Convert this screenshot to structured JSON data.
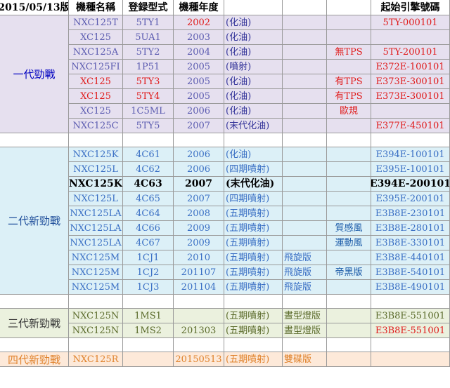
{
  "header": {
    "date": "2015/05/13版",
    "col_name": "機種名稱",
    "col_type": "登録型式",
    "col_year": "機種年度",
    "col_engine": "起始引擎號碼"
  },
  "colors": {
    "gen1_bg": "#e6e0ef",
    "gen2_bg": "#dcf0f7",
    "gen3_bg": "#ebf1de",
    "gen4_bg": "#fde9d9",
    "blue_text": "#3a6fc4",
    "red_text": "#e01a1a",
    "olive_text": "#5a6a2a",
    "orange_text": "#e0822c"
  },
  "groups": [
    {
      "label": "一代勁戰",
      "rows": [
        {
          "name": "NXC125T",
          "type": "5TY1",
          "year": "2002",
          "fuel": "(化油)",
          "ed1": "",
          "ed2": "",
          "engine": "5TY-000101"
        },
        {
          "name": "XC125",
          "type": "5UA1",
          "year": "2003",
          "fuel": "(化油)",
          "ed1": "",
          "ed2": "",
          "engine": ""
        },
        {
          "name": "NXC125A",
          "type": "5TY2",
          "year": "2004",
          "fuel": "(化油)",
          "ed1": "",
          "ed2": "無TPS",
          "engine": "5TY-200101"
        },
        {
          "name": "NXC125FI",
          "type": "1P51",
          "year": "2005",
          "fuel": "(噴射)",
          "ed1": "",
          "ed2": "",
          "engine": "E372E-100101"
        },
        {
          "name": "XC125",
          "type": "5TY3",
          "year": "2005",
          "fuel": "(化油)",
          "ed1": "",
          "ed2": "有TPS",
          "engine": "E373E-300101"
        },
        {
          "name": "XC125",
          "type": "5TY4",
          "year": "2005",
          "fuel": "(化油)",
          "ed1": "",
          "ed2": "有TPS",
          "engine": "E373E-300101"
        },
        {
          "name": "XC125",
          "type": "1C5ML",
          "year": "2006",
          "fuel": "(化油)",
          "ed1": "",
          "ed2": "歐規",
          "engine": ""
        },
        {
          "name": "NXC125C",
          "type": "5TY5",
          "year": "2007",
          "fuel": "(末代化油)",
          "ed1": "",
          "ed2": "",
          "engine": "E377E-450101"
        }
      ]
    },
    {
      "label": "二代新勁戰",
      "rows": [
        {
          "name": "NXC125K",
          "type": "4C61",
          "year": "2006",
          "fuel": "(化油)",
          "ed1": "",
          "ed2": "",
          "engine": "E394E-100101"
        },
        {
          "name": "NXC125L",
          "type": "4C62",
          "year": "2006",
          "fuel": "(四期噴射)",
          "ed1": "",
          "ed2": "",
          "engine": "E395E-100101"
        },
        {
          "name": "NXC125K",
          "type": "4C63",
          "year": "2007",
          "fuel": "(末代化油)",
          "ed1": "",
          "ed2": "",
          "engine": "E394E-200101"
        },
        {
          "name": "NXC125L",
          "type": "4C65",
          "year": "2007",
          "fuel": "(四期噴射)",
          "ed1": "",
          "ed2": "",
          "engine": "E395E-200101"
        },
        {
          "name": "NXC125LA",
          "type": "4C64",
          "year": "2008",
          "fuel": "(五期噴射)",
          "ed1": "",
          "ed2": "",
          "engine": "E3B8E-230101"
        },
        {
          "name": "NXC125LA",
          "type": "4C66",
          "year": "2009",
          "fuel": "(五期噴射)",
          "ed1": "",
          "ed2": "質感風",
          "engine": "E3B8E-280101"
        },
        {
          "name": "NXC125LA",
          "type": "4C67",
          "year": "2009",
          "fuel": "(五期噴射)",
          "ed1": "",
          "ed2": "運動風",
          "engine": "E3B8E-330101"
        },
        {
          "name": "NXC125M",
          "type": "1CJ1",
          "year": "2010",
          "fuel": "(五期噴射)",
          "ed1": "飛旋版",
          "ed2": "",
          "engine": "E3B8E-440101"
        },
        {
          "name": "NXC125M",
          "type": "1CJ2",
          "year": "201107",
          "fuel": "(五期噴射)",
          "ed1": "飛旋版",
          "ed2": "帝黑版",
          "engine": "E3B8E-540101"
        },
        {
          "name": "NXC125M",
          "type": "1CJ3",
          "year": "201104",
          "fuel": "(五期噴射)",
          "ed1": "飛旋版",
          "ed2": "",
          "engine": "E3B8E-490101"
        }
      ]
    },
    {
      "label": "三代新勁戰",
      "rows": [
        {
          "name": "NXC125N",
          "type": "1MS1",
          "year": "",
          "fuel": "(五期噴射)",
          "ed1": "晝型燈版",
          "ed2": "",
          "engine": "E3B8E-551001"
        },
        {
          "name": "NXC125N",
          "type": "1MS2",
          "year": "201303",
          "fuel": "(五期噴射)",
          "ed1": "晝型燈版",
          "ed2": "",
          "engine": "E3B8E-551001"
        }
      ]
    },
    {
      "label": "四代新勁戰",
      "rows": [
        {
          "name": "NXC125R",
          "type": "",
          "year": "20150513",
          "fuel": "(五期噴射)",
          "ed1": "雙碟版",
          "ed2": "",
          "engine": ""
        }
      ]
    }
  ]
}
